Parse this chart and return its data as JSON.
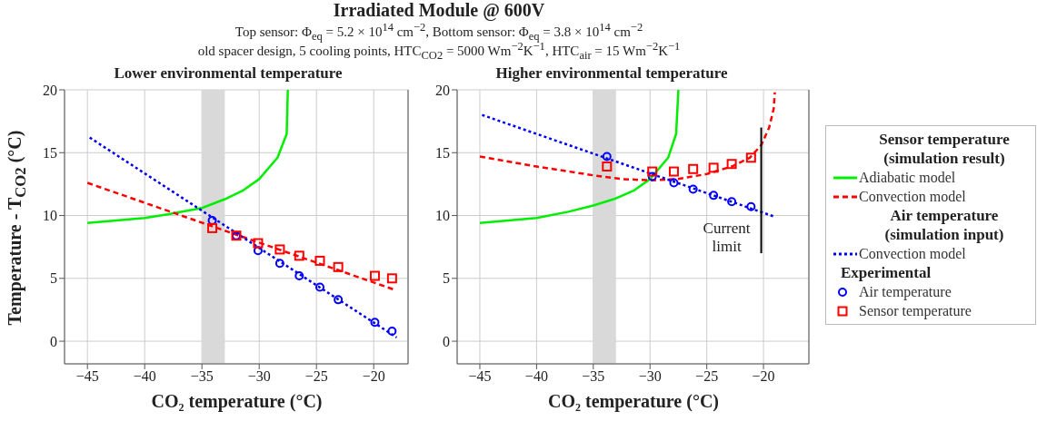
{
  "chart_data": [
    {
      "type": "line",
      "title": "Lower environmental temperature",
      "xlabel": "CO₂ temperature (°C)",
      "ylabel": "Temperature - T$_{CO2}$ (°C)",
      "annotations": [
        "Irradiated Module @ 600V",
        "Top sensor: Φ$_{eq}$ = 5.2 × 10$^{14}$ cm$^{−2}$, Bottom sensor: Φ$_{eq}$ = 3.8 × 10$^{14}$ cm$^{−2}$",
        "old spacer design, 5 cooling points, HTC$_{CO2}$ = 5000 Wm$^{−2}$K$^{−1}$, HTC$_{air}$ = 15 Wm$^{−2}$K$^{−1}$"
      ],
      "xlim": [
        -47,
        -17
      ],
      "xticks": [
        -45,
        -40,
        -35,
        -30,
        -25,
        -20
      ],
      "ylim": [
        -1.8,
        20
      ],
      "yticks": [
        0,
        5,
        10,
        15,
        20
      ],
      "grid": true,
      "bands": [
        {
          "axis": "x",
          "from": -35,
          "to": -33,
          "color": "#d9d9d9"
        }
      ],
      "series": [
        {
          "color": "#00ee00",
          "line_style": "solid",
          "x": [
            -45,
            -40,
            -38,
            -35,
            -33,
            -31.4,
            -30,
            -28.4,
            -27.6,
            -27.5
          ],
          "values": [
            9.4,
            9.8,
            10.1,
            10.6,
            11.3,
            12.0,
            12.9,
            14.6,
            16.5,
            20
          ]
        },
        {
          "color": "#ff0000",
          "line_style": "dashed",
          "x": [
            -45,
            -18.2
          ],
          "values": [
            12.6,
            4.1
          ]
        },
        {
          "color": "#0000ee",
          "line_style": "dotted",
          "x": [
            -44.8,
            -18
          ],
          "values": [
            16.2,
            0.3
          ]
        },
        {
          "type": "scatter",
          "marker": "circle",
          "color": "#0000ff",
          "x": [
            -34.1,
            -32,
            -30.1,
            -28.2,
            -26.5,
            -24.7,
            -23.1,
            -19.9,
            -18.4
          ],
          "values": [
            9.6,
            8.4,
            7.2,
            6.2,
            5.2,
            4.3,
            3.3,
            1.5,
            0.8
          ]
        },
        {
          "type": "scatter",
          "marker": "square",
          "color": "#ff0000",
          "x": [
            -34.1,
            -32,
            -30.1,
            -28.2,
            -26.5,
            -24.7,
            -23.1,
            -19.9,
            -18.4
          ],
          "values": [
            9.0,
            8.4,
            7.8,
            7.3,
            6.8,
            6.4,
            5.9,
            5.2,
            5.0
          ]
        }
      ]
    },
    {
      "type": "line",
      "title": "Higher environmental temperature",
      "xlabel": "CO₂ temperature (°C)",
      "legend": "right",
      "annotations": [
        "Sensor temperature (simulation result)",
        "Air temperature (simulation input)",
        "Experimental",
        {
          "text": "Current limit",
          "x": -20.2,
          "y": 8
        }
      ],
      "xlim": [
        -47,
        -16
      ],
      "xticks": [
        -45,
        -40,
        -35,
        -30,
        -25,
        -20
      ],
      "ylim": [
        -1.8,
        20
      ],
      "yticks": [
        0,
        5,
        10,
        15,
        20
      ],
      "grid": true,
      "bands": [
        {
          "axis": "x",
          "from": -35,
          "to": -33,
          "color": "#d9d9d9"
        }
      ],
      "series": [
        {
          "name": "Adiabatic model",
          "color": "#00ee00",
          "line_style": "solid",
          "x": [
            -45,
            -40,
            -37.2,
            -35,
            -33.2,
            -31.4,
            -30,
            -28.4,
            -27.7,
            -27.5
          ],
          "values": [
            9.4,
            9.8,
            10.3,
            10.8,
            11.3,
            12.0,
            12.9,
            14.6,
            16.5,
            20
          ]
        },
        {
          "name": "Convection model",
          "color": "#ff0000",
          "line_style": "dashed",
          "x": [
            -45,
            -40,
            -35,
            -32.4,
            -30,
            -27.6,
            -25,
            -22.8,
            -21.2,
            -20.2,
            -19.5,
            -19.1,
            -19
          ],
          "values": [
            14.7,
            13.9,
            13.2,
            12.9,
            12.8,
            12.9,
            13.3,
            13.9,
            14.6,
            15.6,
            17.0,
            18.5,
            19.8
          ]
        },
        {
          "name": "Convection model",
          "color": "#0000ee",
          "line_style": "dotted",
          "x": [
            -44.8,
            -19
          ],
          "values": [
            18,
            9.9
          ]
        },
        {
          "name": "Air temperature",
          "type": "scatter",
          "marker": "circle",
          "color": "#0000ff",
          "x": [
            -33.8,
            -29.8,
            -27.9,
            -26.2,
            -24.4,
            -22.8,
            -21.1
          ],
          "values": [
            14.7,
            13.1,
            12.6,
            12.1,
            11.6,
            11.1,
            10.7
          ]
        },
        {
          "name": "Sensor temperature",
          "type": "scatter",
          "marker": "square",
          "color": "#ff0000",
          "x": [
            -33.8,
            -29.8,
            -27.9,
            -26.2,
            -24.4,
            -22.8,
            -21.1
          ],
          "values": [
            13.9,
            13.5,
            13.5,
            13.7,
            13.8,
            14.1,
            14.6
          ]
        },
        {
          "color": "#000000",
          "line_style": "solid",
          "x": [
            -20.2,
            -20.2
          ],
          "values": [
            7,
            17
          ]
        }
      ]
    }
  ]
}
